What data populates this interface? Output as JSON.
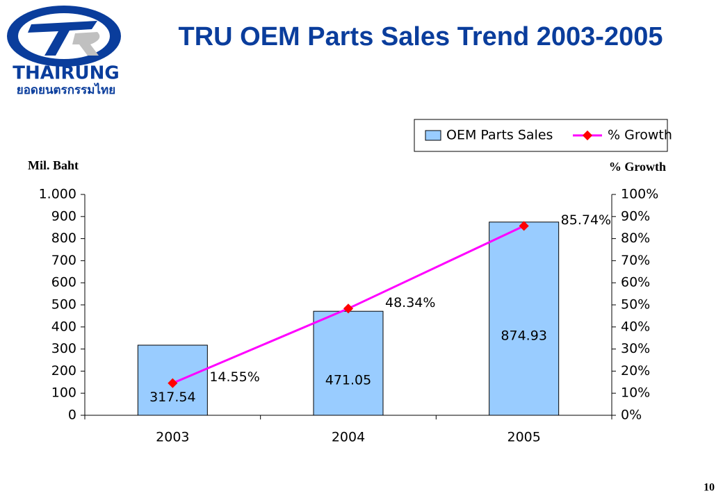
{
  "logo": {
    "name": "THAIRUNG",
    "tagline": "ยอดยนตรกรรมไทย"
  },
  "page_number": "10",
  "chart_data": {
    "type": "bar_line",
    "title": "TRU OEM Parts Sales Trend 2003-2005",
    "y_label": "Mil. Baht",
    "y2_label": "% Growth",
    "categories": [
      "2003",
      "2004",
      "2005"
    ],
    "series": [
      {
        "name": "OEM Parts Sales",
        "type": "bar",
        "color": "#99ccff",
        "values": [
          317.54,
          471.05,
          874.93
        ]
      },
      {
        "name": "% Growth",
        "type": "line",
        "axis": "y2",
        "color": "#ff00ff",
        "marker_color": "#ff0000",
        "values": [
          14.55,
          48.34,
          85.74
        ],
        "value_labels": [
          "14.55%",
          "48.34%",
          "85.74%"
        ]
      }
    ],
    "ylim": [
      0,
      1000
    ],
    "yticks": [
      0,
      100,
      200,
      300,
      400,
      500,
      600,
      700,
      800,
      900,
      {
        "value": 1000,
        "label": "1.000"
      }
    ],
    "y2lim": [
      0,
      100
    ],
    "y2ticks": [
      {
        "value": 0,
        "label": "0%"
      },
      {
        "value": 10,
        "label": "10%"
      },
      {
        "value": 20,
        "label": "20%"
      },
      {
        "value": 30,
        "label": "30%"
      },
      {
        "value": 40,
        "label": "40%"
      },
      {
        "value": 50,
        "label": "50%"
      },
      {
        "value": 60,
        "label": "60%"
      },
      {
        "value": 70,
        "label": "70%"
      },
      {
        "value": 80,
        "label": "80%"
      },
      {
        "value": 90,
        "label": "90%"
      },
      {
        "value": 100,
        "label": "100%"
      }
    ],
    "legend": "top-right"
  }
}
